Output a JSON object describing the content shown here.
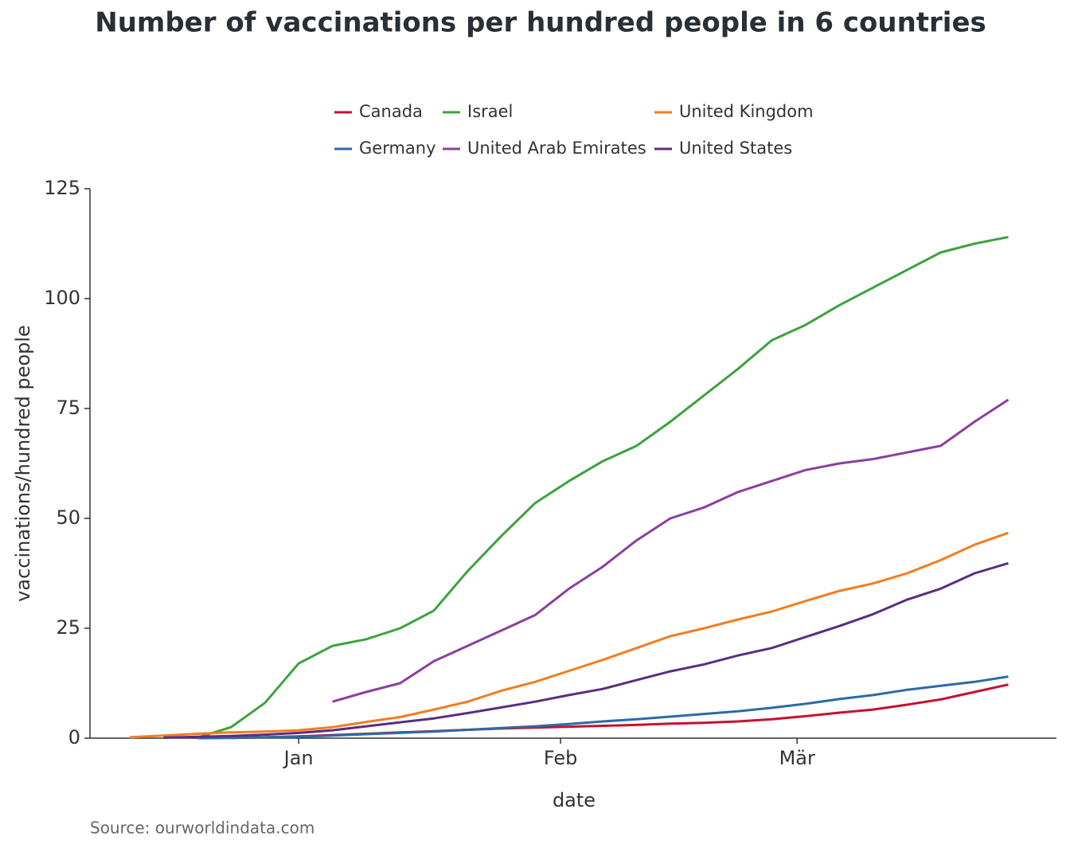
{
  "chart_data": {
    "type": "line",
    "title": "Number of vaccinations per hundred people in 6 countries",
    "x_label": "date",
    "y_label": "vaccinations/hundred people",
    "source": "Source: ourworldindata.com",
    "legend": "top",
    "x": [
      -20,
      -16,
      -12,
      -8,
      -4,
      0,
      4,
      8,
      12,
      16,
      20,
      24,
      28,
      32,
      36,
      40,
      44,
      48,
      52,
      56,
      60,
      64,
      68,
      72,
      76,
      80,
      84
    ],
    "series": [
      {
        "name": "Canada",
        "color": "#c8102e",
        "values": [
          null,
          null,
          null,
          0.05,
          0.2,
          0.4,
          0.7,
          1.0,
          1.3,
          1.6,
          1.9,
          2.2,
          2.4,
          2.6,
          2.8,
          3.0,
          3.3,
          3.5,
          3.8,
          4.3,
          5.0,
          5.8,
          6.5,
          7.6,
          8.8,
          10.5,
          12.2
        ]
      },
      {
        "name": "Germany",
        "color": "#2c6aa6",
        "values": [
          null,
          null,
          0,
          0.05,
          0.2,
          0.3,
          0.6,
          0.9,
          1.2,
          1.5,
          1.9,
          2.3,
          2.7,
          3.2,
          3.8,
          4.3,
          4.9,
          5.5,
          6.1,
          6.9,
          7.8,
          8.9,
          9.8,
          11,
          11.9,
          12.8,
          14
        ]
      },
      {
        "name": "Israel",
        "color": "#3ca33c",
        "values": [
          null,
          null,
          0.1,
          2.5,
          8,
          17,
          21,
          22.5,
          25,
          29,
          38,
          46,
          53.5,
          58.5,
          63,
          66.5,
          72,
          78,
          84,
          90.5,
          94,
          98.5,
          102.5,
          106.5,
          110.5,
          112.5,
          114
        ]
      },
      {
        "name": "United Arab Emirates",
        "color": "#8b3fa0",
        "values": [
          null,
          null,
          null,
          null,
          null,
          null,
          8.3,
          10.5,
          12.5,
          17.5,
          21,
          24.5,
          28,
          34,
          39,
          45,
          50,
          52.5,
          56,
          58.5,
          61,
          62.5,
          63.5,
          65,
          66.5,
          72,
          77
        ]
      },
      {
        "name": "United Kingdom",
        "color": "#f57c1f",
        "values": [
          0.2,
          0.6,
          1.0,
          1.3,
          1.5,
          1.8,
          2.5,
          3.7,
          4.8,
          6.5,
          8.3,
          10.8,
          12.8,
          15.3,
          17.8,
          20.5,
          23.2,
          25,
          27,
          28.8,
          31.2,
          33.5,
          35.2,
          37.5,
          40.5,
          44,
          46.7
        ]
      },
      {
        "name": "United States",
        "color": "#5a2d82",
        "values": [
          null,
          0.1,
          0.3,
          0.5,
          0.8,
          1.2,
          1.8,
          2.7,
          3.6,
          4.5,
          5.7,
          7,
          8.3,
          9.8,
          11.2,
          13.2,
          15.2,
          16.8,
          18.8,
          20.5,
          23,
          25.5,
          28.2,
          31.5,
          34,
          37.5,
          39.8
        ]
      }
    ],
    "xlim": [
      -24.7,
      89.7
    ],
    "xticks": [
      {
        "value": 0,
        "label": "Jan"
      },
      {
        "value": 31,
        "label": "Feb"
      },
      {
        "value": 59,
        "label": "Mär"
      }
    ],
    "ylim": [
      0,
      125
    ],
    "yticks": [
      0,
      25,
      50,
      75,
      100,
      125
    ]
  }
}
